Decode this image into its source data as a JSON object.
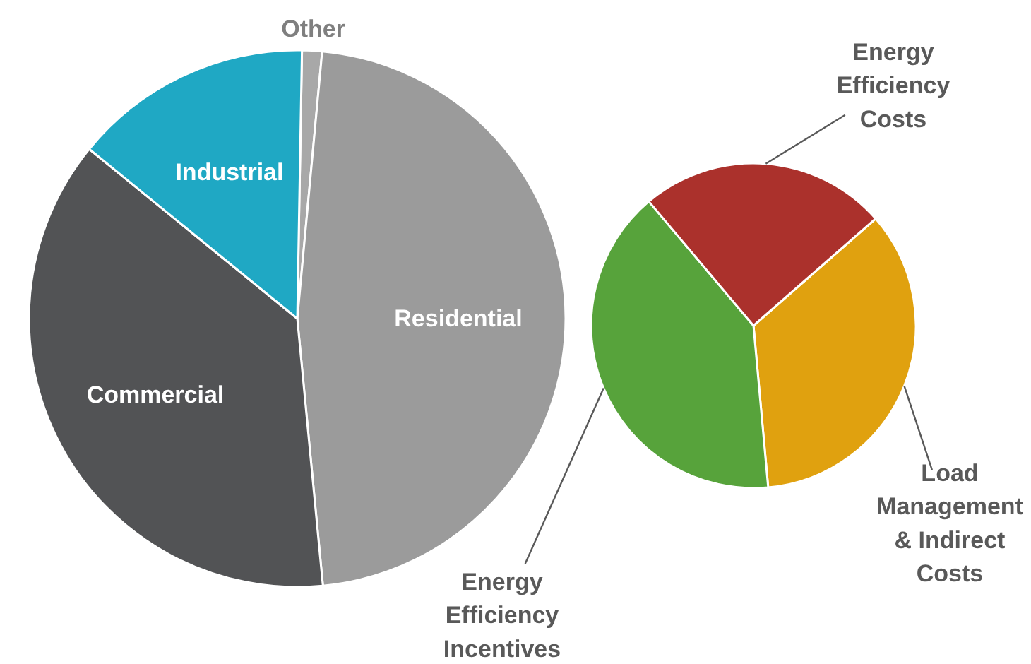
{
  "chart_data": [
    {
      "type": "pie",
      "categories": [
        "Other",
        "Residential",
        "Commercial",
        "Industrial"
      ],
      "values": [
        1.2,
        47,
        37.4,
        14.4
      ],
      "colors": [
        "#a8a8a8",
        "#9b9b9b",
        "#525355",
        "#1fa8c4"
      ]
    },
    {
      "type": "pie",
      "categories": [
        "Load Management & Indirect Costs",
        "Energy Efficiency Incentives",
        "Energy Efficiency Costs"
      ],
      "values": [
        35,
        40.3,
        24.7
      ],
      "colors": [
        "#e0a10f",
        "#57a33b",
        "#ab312c"
      ]
    }
  ]
}
